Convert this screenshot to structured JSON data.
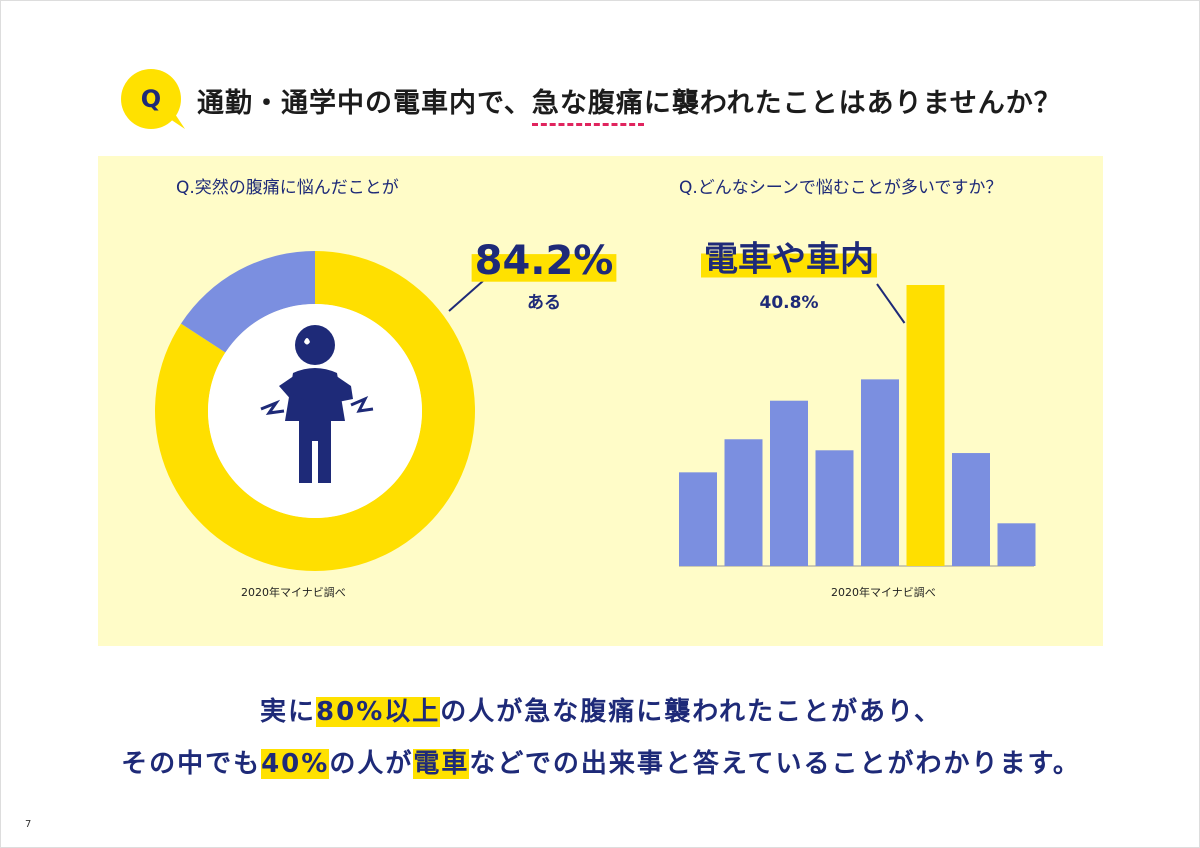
{
  "header": {
    "badge": "Q",
    "title": [
      "通勤・通学中の電車内で、",
      "急な腹痛",
      "に襲われたことはありませんか？"
    ]
  },
  "chart_data": [
    {
      "type": "pie",
      "title": "Q.突然の腹痛に悩んだことが",
      "categories": [
        "ある",
        null
      ],
      "values": [
        84.2,
        15.8
      ],
      "value_labels": [
        "84.2%",
        null
      ],
      "colors": [
        "#ffdf00",
        "#7b8fe0"
      ],
      "source": "2020年マイナビ調べ"
    },
    {
      "type": "bar",
      "title": "Q.どんなシーンで悩むことが多いですか？",
      "categories": [
        null,
        null,
        null,
        null,
        null,
        "電車や車内",
        null,
        null
      ],
      "values": [
        13.6,
        18.4,
        24.0,
        16.8,
        27.1,
        40.8,
        16.4,
        6.2
      ],
      "value_labels": [
        null,
        null,
        null,
        null,
        null,
        "40.8%",
        null,
        null
      ],
      "colors": [
        "#7b8fe0",
        "#7b8fe0",
        "#7b8fe0",
        "#7b8fe0",
        "#7b8fe0",
        "#ffdf00",
        "#7b8fe0",
        "#7b8fe0"
      ],
      "source": "2020年マイナビ調べ"
    }
  ],
  "footer": [
    [
      "実に",
      "80%以上",
      "の人が急な腹痛に襲われたことがあり、"
    ],
    [
      "その中でも",
      "40%",
      "の人が",
      "電車",
      "などでの出来事と答えていることがわかります。"
    ]
  ],
  "page_number": "7"
}
